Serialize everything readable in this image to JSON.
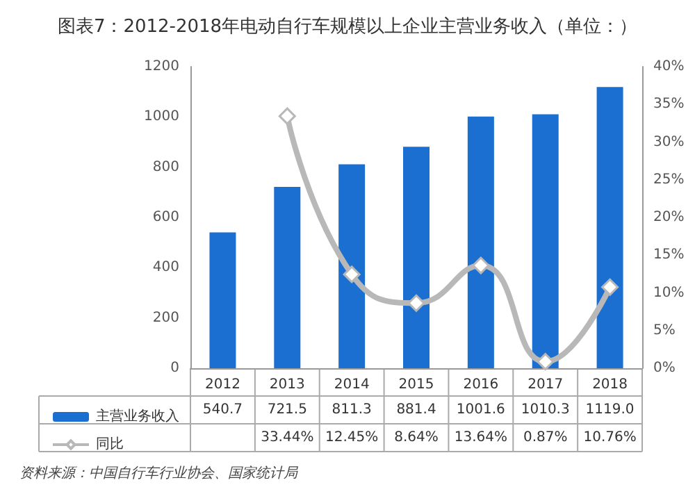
{
  "chart_data": {
    "type": "bar",
    "title": "图表7：2012-2018年电动自行车规模以上企业主营业务收入（单位：）",
    "categories": [
      "2012",
      "2013",
      "2014",
      "2015",
      "2016",
      "2017",
      "2018"
    ],
    "series": [
      {
        "name": "主营业务收入",
        "color": "#1a6fd0",
        "values": [
          540.7,
          721.5,
          811.3,
          881.4,
          1001.6,
          1010.3,
          1119.0
        ],
        "value_labels": [
          "540.7",
          "721.5",
          "811.3",
          "881.4",
          "1001.6",
          "1010.3",
          "1119.0"
        ]
      },
      {
        "name": "同比",
        "type": "line",
        "axis": "y2",
        "color": "#b8b8b8",
        "marker": "diamond",
        "values": [
          null,
          33.44,
          12.45,
          8.64,
          13.64,
          0.87,
          10.76
        ],
        "value_labels": [
          null,
          "33.44%",
          "12.45%",
          "8.64%",
          "13.64%",
          "0.87%",
          "10.76%"
        ]
      }
    ],
    "ylim": [
      0,
      1200
    ],
    "yticks": [
      0,
      200,
      400,
      600,
      800,
      1000,
      1200
    ],
    "y2lim": [
      0,
      40
    ],
    "y2ticks": [
      {
        "value": 0,
        "label": "0%"
      },
      {
        "value": 5,
        "label": "5%"
      },
      {
        "value": 10,
        "label": "10%"
      },
      {
        "value": 15,
        "label": "15%"
      },
      {
        "value": 20,
        "label": "20%"
      },
      {
        "value": 25,
        "label": "25%"
      },
      {
        "value": 30,
        "label": "30%"
      },
      {
        "value": 35,
        "label": "35%"
      },
      {
        "value": 40,
        "label": "40%"
      }
    ],
    "grid": false,
    "legend": "bottom left",
    "annotations": [
      "资料来源：中国自行车行业协会、国家统计局"
    ]
  }
}
